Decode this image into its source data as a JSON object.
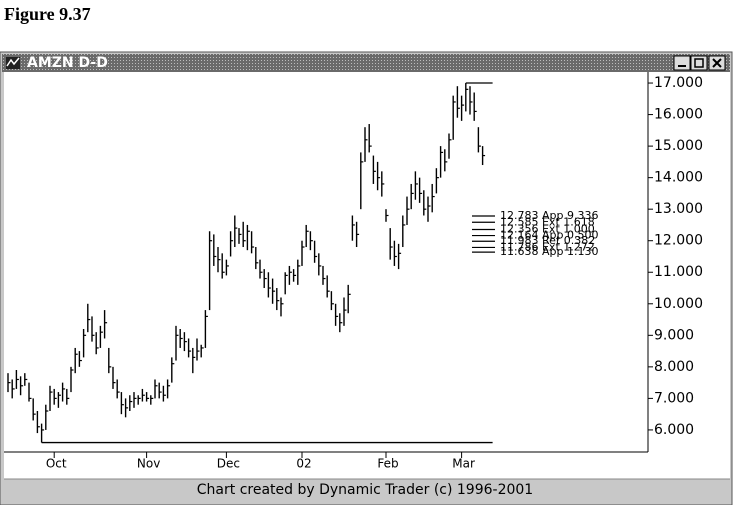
{
  "figure_label": "Figure 9.37",
  "window": {
    "title": "AMZN D-D",
    "footer": "Chart created by Dynamic Trader (c) 1996-2001"
  },
  "chart_data": {
    "type": "ohlc",
    "categories": [
      null,
      null,
      null,
      null,
      null,
      null,
      null,
      null,
      null,
      null,
      null,
      "Oct",
      null,
      null,
      null,
      null,
      null,
      null,
      null,
      null,
      null,
      null,
      null,
      null,
      null,
      null,
      null,
      null,
      null,
      null,
      null,
      null,
      null,
      "Nov",
      null,
      null,
      null,
      null,
      null,
      null,
      null,
      null,
      null,
      null,
      null,
      null,
      null,
      null,
      null,
      null,
      null,
      null,
      "Dec",
      null,
      null,
      null,
      null,
      null,
      null,
      null,
      null,
      null,
      null,
      null,
      null,
      null,
      null,
      null,
      null,
      null,
      "02",
      null,
      null,
      null,
      null,
      null,
      null,
      null,
      null,
      null,
      null,
      null,
      null,
      null,
      null,
      null,
      null,
      null,
      null,
      null,
      "Feb",
      null,
      null,
      null,
      null,
      null,
      null,
      null,
      null,
      null,
      null,
      null,
      null,
      null,
      null,
      null,
      null,
      null,
      "Mar",
      null,
      null,
      null,
      null,
      null
    ],
    "high": [
      7.8,
      7.6,
      7.9,
      7.7,
      7.8,
      7.5,
      7.0,
      6.6,
      6.2,
      6.8,
      7.4,
      7.3,
      7.2,
      7.5,
      7.3,
      8.0,
      8.6,
      8.5,
      9.2,
      10.0,
      9.6,
      9.1,
      9.3,
      9.8,
      8.6,
      8.0,
      7.6,
      7.2,
      7.0,
      7.1,
      7.2,
      7.1,
      7.3,
      7.2,
      7.1,
      7.6,
      7.5,
      7.4,
      7.6,
      8.3,
      9.3,
      9.2,
      9.1,
      8.9,
      8.6,
      8.9,
      8.7,
      9.8,
      12.3,
      12.2,
      11.8,
      11.6,
      11.4,
      12.3,
      12.8,
      12.4,
      12.6,
      12.5,
      12.3,
      11.8,
      11.4,
      11.1,
      11.0,
      10.8,
      10.5,
      10.2,
      11.0,
      11.2,
      11.1,
      11.4,
      12.0,
      12.5,
      12.3,
      12.0,
      11.6,
      11.2,
      10.9,
      10.4,
      10.0,
      9.7,
      10.2,
      10.6,
      12.8,
      12.6,
      14.8,
      15.6,
      15.7,
      14.7,
      14.5,
      14.2,
      13.0,
      12.4,
      12.0,
      11.9,
      12.8,
      13.4,
      13.8,
      14.2,
      14.0,
      13.6,
      13.4,
      13.8,
      14.3,
      15.0,
      14.9,
      15.4,
      16.6,
      16.9,
      16.6,
      17.0,
      16.9,
      16.7,
      15.6,
      15.0
    ],
    "low": [
      7.2,
      7.0,
      7.3,
      7.1,
      7.4,
      6.9,
      6.3,
      5.9,
      5.6,
      6.0,
      6.6,
      6.8,
      6.7,
      6.9,
      6.8,
      7.2,
      7.8,
      8.0,
      8.3,
      9.1,
      8.8,
      8.4,
      8.6,
      8.9,
      7.8,
      7.3,
      7.0,
      6.5,
      6.4,
      6.6,
      6.7,
      6.8,
      6.9,
      6.9,
      6.8,
      7.0,
      7.0,
      6.9,
      7.0,
      7.5,
      8.2,
      8.6,
      8.5,
      8.3,
      7.8,
      8.2,
      8.3,
      8.6,
      9.8,
      11.2,
      11.0,
      10.8,
      10.9,
      11.5,
      11.8,
      11.9,
      11.8,
      11.7,
      11.6,
      11.1,
      10.8,
      10.5,
      10.2,
      10.0,
      9.8,
      9.6,
      10.3,
      10.6,
      10.7,
      10.6,
      11.2,
      11.8,
      11.7,
      11.3,
      10.9,
      10.6,
      10.2,
      9.8,
      9.3,
      9.1,
      9.3,
      9.7,
      12.0,
      11.8,
      13.0,
      14.5,
      14.8,
      13.8,
      13.6,
      13.4,
      12.6,
      11.4,
      11.2,
      11.1,
      11.8,
      12.5,
      13.0,
      13.3,
      13.2,
      12.8,
      12.6,
      12.9,
      13.5,
      14.0,
      14.2,
      14.6,
      15.2,
      15.9,
      15.8,
      16.1,
      16.0,
      15.8,
      14.8,
      14.4
    ],
    "close": [
      7.5,
      7.3,
      7.6,
      7.4,
      7.6,
      7.0,
      6.5,
      6.1,
      6.0,
      6.6,
      7.2,
      7.0,
      7.1,
      7.3,
      7.0,
      7.9,
      8.4,
      8.2,
      9.0,
      9.5,
      9.0,
      8.6,
      9.1,
      9.4,
      8.0,
      7.5,
      7.2,
      6.8,
      6.7,
      6.9,
      7.0,
      7.0,
      7.1,
      7.0,
      7.0,
      7.4,
      7.2,
      7.1,
      7.4,
      8.1,
      9.0,
      8.9,
      8.8,
      8.5,
      8.3,
      8.5,
      8.6,
      9.6,
      12.0,
      11.5,
      11.4,
      11.0,
      11.2,
      12.0,
      12.4,
      12.2,
      12.0,
      12.3,
      11.8,
      11.3,
      11.0,
      10.8,
      10.5,
      10.4,
      10.1,
      10.0,
      10.9,
      11.0,
      10.9,
      11.2,
      11.8,
      12.3,
      12.0,
      11.5,
      11.2,
      10.8,
      10.4,
      10.0,
      9.6,
      9.4,
      9.8,
      10.3,
      12.5,
      12.2,
      14.5,
      15.2,
      15.0,
      14.2,
      14.0,
      13.8,
      12.8,
      11.8,
      11.5,
      11.6,
      12.5,
      13.0,
      13.5,
      13.8,
      13.5,
      13.0,
      13.1,
      13.4,
      14.0,
      14.8,
      14.5,
      15.2,
      16.4,
      16.2,
      16.3,
      16.8,
      16.4,
      16.1,
      15.0,
      14.7
    ],
    "color": "#000000",
    "ylim": [
      5.3,
      17.35
    ],
    "yticks": [
      {
        "value": 6,
        "label": "6.000"
      },
      {
        "value": 7,
        "label": "7.000"
      },
      {
        "value": 8,
        "label": "8.000"
      },
      {
        "value": 9,
        "label": "9.000"
      },
      {
        "value": 10,
        "label": "10.000"
      },
      {
        "value": 11,
        "label": "11.000"
      },
      {
        "value": 12,
        "label": "12.000"
      },
      {
        "value": 13,
        "label": "13.000"
      },
      {
        "value": 14,
        "label": "14.000"
      },
      {
        "value": 15,
        "label": "15.000"
      },
      {
        "value": 16,
        "label": "16.000"
      },
      {
        "value": 17,
        "label": "17.000"
      }
    ],
    "reference_lines": [
      {
        "value": 5.6,
        "start_index": 8
      },
      {
        "value": 17.0,
        "start_index": 109
      }
    ],
    "levels": [
      {
        "value": 12.783,
        "label": "12.783 App 9.336"
      },
      {
        "value": 12.585,
        "label": "12.585 Ext 1.618"
      },
      {
        "value": 12.356,
        "label": "12.356 Ext 1.000"
      },
      {
        "value": 12.164,
        "label": "12.164 App 0.500"
      },
      {
        "value": 11.983,
        "label": "11.983 Ret 0.382"
      },
      {
        "value": 11.786,
        "label": "11.786 Ext 1.272"
      },
      {
        "value": 11.638,
        "label": "11.638 App 1.130"
      }
    ]
  }
}
